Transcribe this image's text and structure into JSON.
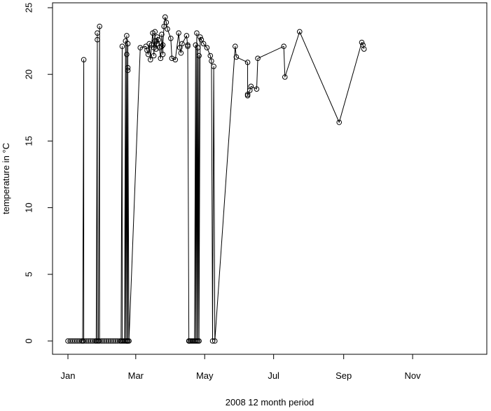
{
  "chart_data": {
    "type": "scatter",
    "title": "",
    "xlabel": "2008 12 month period",
    "ylabel": "temperature in °C",
    "x_scale": "date",
    "xlim": [
      "2008-01-01",
      "2008-12-23"
    ],
    "ylim": [
      0,
      25
    ],
    "xticks": [
      {
        "label": "Jan",
        "value": "2008-01-01"
      },
      {
        "label": "Mar",
        "value": "2008-03-01"
      },
      {
        "label": "May",
        "value": "2008-05-01"
      },
      {
        "label": "Jul",
        "value": "2008-07-01"
      },
      {
        "label": "Sep",
        "value": "2008-09-01"
      },
      {
        "label": "Nov",
        "value": "2008-11-01"
      }
    ],
    "yticks": [
      0,
      5,
      10,
      15,
      20,
      25
    ],
    "grid": false,
    "legend": "none",
    "line_color": "#000000",
    "marker": "open-circle",
    "series": [
      {
        "points": [
          [
            "2008-01-01",
            0
          ],
          [
            "2008-01-03",
            0
          ],
          [
            "2008-01-05",
            0
          ],
          [
            "2008-01-07",
            0
          ],
          [
            "2008-01-09",
            0
          ],
          [
            "2008-01-11",
            0
          ],
          [
            "2008-01-13",
            0
          ],
          [
            "2008-01-14",
            0
          ],
          [
            "2008-01-15",
            21.1
          ],
          [
            "2008-01-15",
            0
          ],
          [
            "2008-01-17",
            0
          ],
          [
            "2008-01-19",
            0
          ],
          [
            "2008-01-21",
            0
          ],
          [
            "2008-01-23",
            0
          ],
          [
            "2008-01-25",
            0
          ],
          [
            "2008-01-26",
            0
          ],
          [
            "2008-01-27",
            22.6
          ],
          [
            "2008-01-27",
            23.1
          ],
          [
            "2008-01-27",
            0
          ],
          [
            "2008-01-28",
            0
          ],
          [
            "2008-01-29",
            23.6
          ],
          [
            "2008-01-29",
            0
          ],
          [
            "2008-01-31",
            0
          ],
          [
            "2008-02-02",
            0
          ],
          [
            "2008-02-04",
            0
          ],
          [
            "2008-02-06",
            0
          ],
          [
            "2008-02-08",
            0
          ],
          [
            "2008-02-10",
            0
          ],
          [
            "2008-02-12",
            0
          ],
          [
            "2008-02-14",
            0
          ],
          [
            "2008-02-16",
            0
          ],
          [
            "2008-02-17",
            0
          ],
          [
            "2008-02-18",
            22.1
          ],
          [
            "2008-02-18",
            0
          ],
          [
            "2008-02-19",
            0
          ],
          [
            "2008-02-20",
            0
          ],
          [
            "2008-02-21",
            22.5
          ],
          [
            "2008-02-21",
            0
          ],
          [
            "2008-02-22",
            22.9
          ],
          [
            "2008-02-22",
            0
          ],
          [
            "2008-02-22",
            21.5
          ],
          [
            "2008-02-22",
            0
          ],
          [
            "2008-02-23",
            22.3
          ],
          [
            "2008-02-23",
            0
          ],
          [
            "2008-02-23",
            20.5
          ],
          [
            "2008-02-23",
            0
          ],
          [
            "2008-02-23",
            20.3
          ],
          [
            "2008-02-24",
            0
          ],
          [
            "2008-03-05",
            22.0
          ],
          [
            "2008-03-10",
            22.1
          ],
          [
            "2008-03-11",
            21.8
          ],
          [
            "2008-03-12",
            21.5
          ],
          [
            "2008-03-13",
            22.3
          ],
          [
            "2008-03-14",
            21.1
          ],
          [
            "2008-03-15",
            22.2
          ],
          [
            "2008-03-16",
            23.1
          ],
          [
            "2008-03-17",
            22.0
          ],
          [
            "2008-03-17",
            21.4
          ],
          [
            "2008-03-18",
            23.2
          ],
          [
            "2008-03-18",
            22.5
          ],
          [
            "2008-03-19",
            21.9
          ],
          [
            "2008-03-20",
            22.8
          ],
          [
            "2008-03-20",
            22.3
          ],
          [
            "2008-03-21",
            22.6
          ],
          [
            "2008-03-22",
            22.0
          ],
          [
            "2008-03-23",
            21.2
          ],
          [
            "2008-03-24",
            22.1
          ],
          [
            "2008-03-24",
            23.0
          ],
          [
            "2008-03-25",
            21.5
          ],
          [
            "2008-03-25",
            22.2
          ],
          [
            "2008-03-26",
            23.6
          ],
          [
            "2008-03-27",
            24.3
          ],
          [
            "2008-03-28",
            23.9
          ],
          [
            "2008-03-29",
            23.4
          ],
          [
            "2008-04-01",
            22.7
          ],
          [
            "2008-04-02",
            21.2
          ],
          [
            "2008-04-05",
            21.1
          ],
          [
            "2008-04-08",
            23.1
          ],
          [
            "2008-04-09",
            22.0
          ],
          [
            "2008-04-10",
            21.6
          ],
          [
            "2008-04-11",
            22.3
          ],
          [
            "2008-04-15",
            22.9
          ],
          [
            "2008-04-16",
            22.1
          ],
          [
            "2008-04-16",
            22.2
          ],
          [
            "2008-04-17",
            0
          ],
          [
            "2008-04-17",
            0
          ],
          [
            "2008-04-18",
            0
          ],
          [
            "2008-04-19",
            0
          ],
          [
            "2008-04-20",
            0
          ],
          [
            "2008-04-21",
            0
          ],
          [
            "2008-04-22",
            0
          ],
          [
            "2008-04-23",
            22.2
          ],
          [
            "2008-04-23",
            0
          ],
          [
            "2008-04-24",
            23.1
          ],
          [
            "2008-04-24",
            0
          ],
          [
            "2008-04-25",
            22.0
          ],
          [
            "2008-04-25",
            0
          ],
          [
            "2008-04-26",
            21.4
          ],
          [
            "2008-04-26",
            0
          ],
          [
            "2008-04-27",
            22.8
          ],
          [
            "2008-04-28",
            22.6
          ],
          [
            "2008-04-30",
            22.3
          ],
          [
            "2008-05-03",
            22.0
          ],
          [
            "2008-05-06",
            21.4
          ],
          [
            "2008-05-07",
            21.0
          ],
          [
            "2008-05-08",
            0
          ],
          [
            "2008-05-09",
            20.6
          ],
          [
            "2008-05-10",
            0
          ],
          [
            "2008-05-28",
            22.1
          ],
          [
            "2008-05-29",
            21.3
          ],
          [
            "2008-06-08",
            20.9
          ],
          [
            "2008-06-08",
            18.5
          ],
          [
            "2008-06-08",
            18.4
          ],
          [
            "2008-06-10",
            18.8
          ],
          [
            "2008-06-11",
            19.1
          ],
          [
            "2008-06-16",
            18.9
          ],
          [
            "2008-06-17",
            21.2
          ],
          [
            "2008-07-10",
            22.1
          ],
          [
            "2008-07-11",
            19.8
          ],
          [
            "2008-07-24",
            23.2
          ],
          [
            "2008-08-28",
            16.4
          ],
          [
            "2008-09-17",
            22.4
          ],
          [
            "2008-09-18",
            22.2
          ],
          [
            "2008-09-19",
            21.9
          ]
        ]
      }
    ]
  }
}
